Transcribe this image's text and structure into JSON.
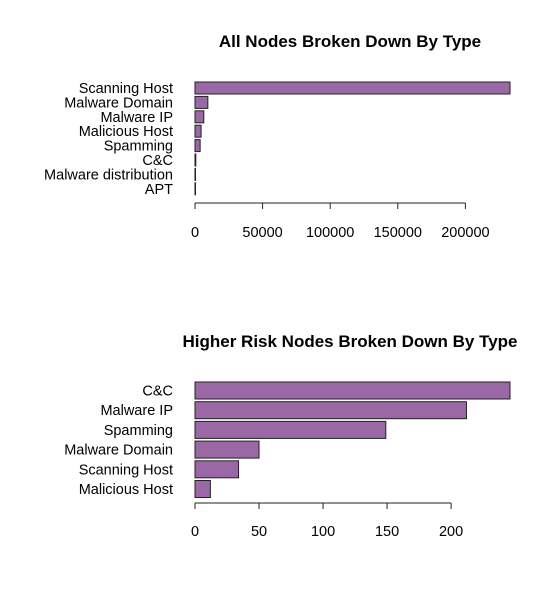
{
  "chart_data": [
    {
      "type": "bar",
      "orientation": "horizontal",
      "title": "All Nodes Broken Down By Type",
      "xlabel": "",
      "ylabel": "",
      "categories": [
        "Scanning Host",
        "Malware Domain",
        "Malware IP",
        "Malicious Host",
        "Spamming",
        "C&C",
        "Malware distribution",
        "APT"
      ],
      "values": [
        233000,
        9500,
        6500,
        4500,
        3800,
        600,
        200,
        100
      ],
      "xlim": [
        0,
        233000
      ],
      "xticks": [
        0,
        50000,
        100000,
        150000,
        200000
      ],
      "xtick_labels": [
        "0",
        "50000",
        "100000",
        "150000",
        "200000"
      ],
      "bar_color": "#9a68a4",
      "grid": false
    },
    {
      "type": "bar",
      "orientation": "horizontal",
      "title": "Higher Risk Nodes Broken Down By Type",
      "xlabel": "",
      "ylabel": "",
      "categories": [
        "C&C",
        "Malware IP",
        "Spamming",
        "Malware Domain",
        "Scanning Host",
        "Malicious Host"
      ],
      "values": [
        246,
        212,
        149,
        50,
        34,
        12
      ],
      "xlim": [
        0,
        246
      ],
      "xticks": [
        0,
        50,
        100,
        150,
        200
      ],
      "xtick_labels": [
        "0",
        "50",
        "100",
        "150",
        "200"
      ],
      "bar_color": "#9a68a4",
      "grid": false
    }
  ]
}
